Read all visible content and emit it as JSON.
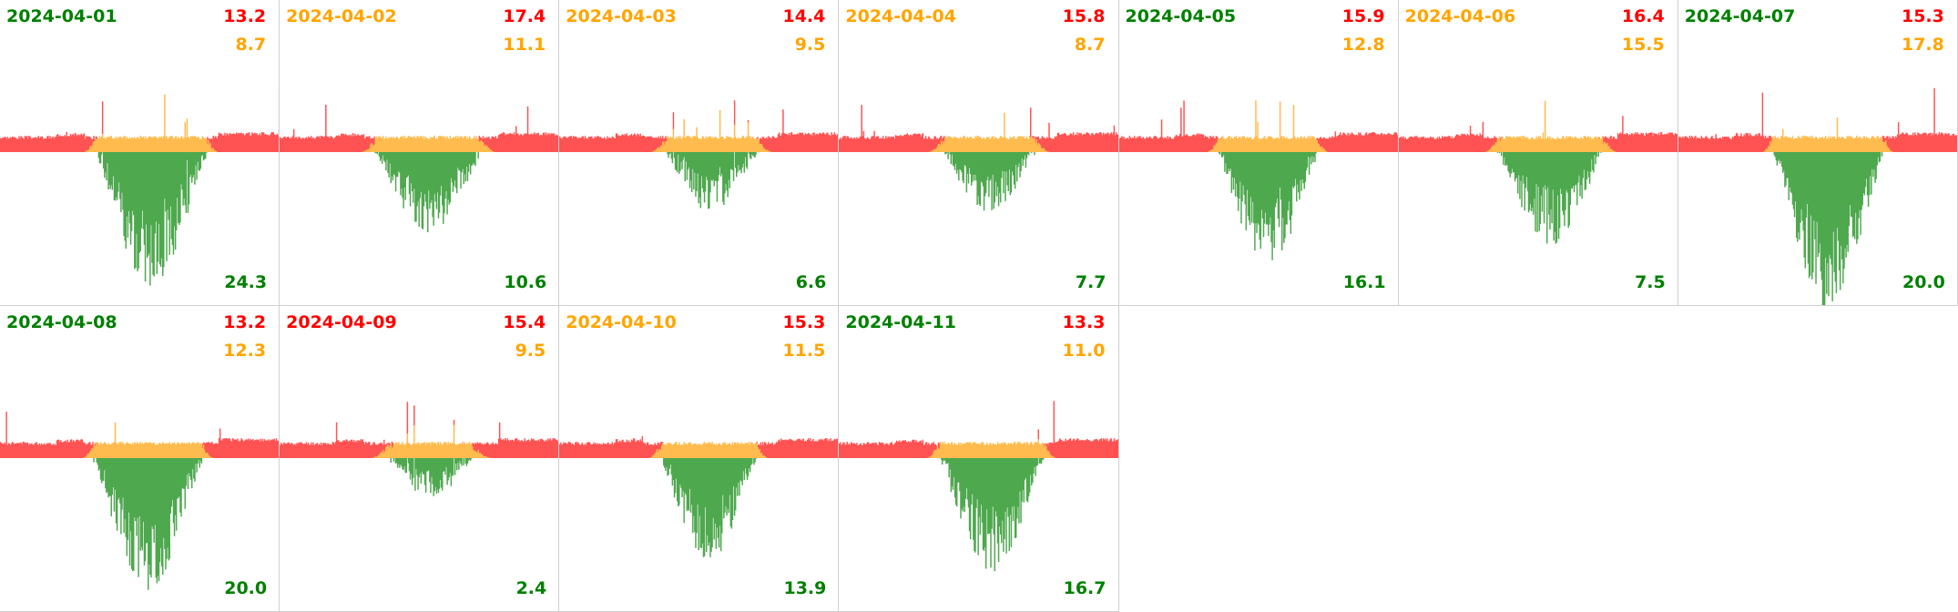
{
  "colors": {
    "consumption": "#ff5252",
    "self_use": "#ffbb4d",
    "export": "#4ea84e",
    "text_red": "#ff0000",
    "text_orange": "#ffa500",
    "text_green": "#008000"
  },
  "chart_data": {
    "type": "area",
    "title": "",
    "series_legend": [
      "grid import (red)",
      "self consumption (orange)",
      "export (green)"
    ],
    "days": [
      {
        "date": "2024-04-01",
        "date_color": "#008000",
        "red": "13.2",
        "orange": "8.7",
        "green": "24.3"
      },
      {
        "date": "2024-04-02",
        "date_color": "#ffa500",
        "red": "17.4",
        "orange": "11.1",
        "green": "10.6"
      },
      {
        "date": "2024-04-03",
        "date_color": "#ffa500",
        "red": "14.4",
        "orange": "9.5",
        "green": "6.6"
      },
      {
        "date": "2024-04-04",
        "date_color": "#ffa500",
        "red": "15.8",
        "orange": "8.7",
        "green": "7.7"
      },
      {
        "date": "2024-04-05",
        "date_color": "#008000",
        "red": "15.9",
        "orange": "12.8",
        "green": "16.1"
      },
      {
        "date": "2024-04-06",
        "date_color": "#ffa500",
        "red": "16.4",
        "orange": "15.5",
        "green": "7.5"
      },
      {
        "date": "2024-04-07",
        "date_color": "#008000",
        "red": "15.3",
        "orange": "17.8",
        "green": "20.0"
      },
      {
        "date": "2024-04-08",
        "date_color": "#008000",
        "red": "13.2",
        "orange": "12.3",
        "green": "20.0"
      },
      {
        "date": "2024-04-09",
        "date_color": "#ff0000",
        "red": "15.4",
        "orange": "9.5",
        "green": "2.4"
      },
      {
        "date": "2024-04-10",
        "date_color": "#ffa500",
        "red": "15.3",
        "orange": "11.5",
        "green": "13.9"
      },
      {
        "date": "2024-04-11",
        "date_color": "#008000",
        "red": "13.3",
        "orange": "11.0",
        "green": "16.7"
      }
    ]
  }
}
